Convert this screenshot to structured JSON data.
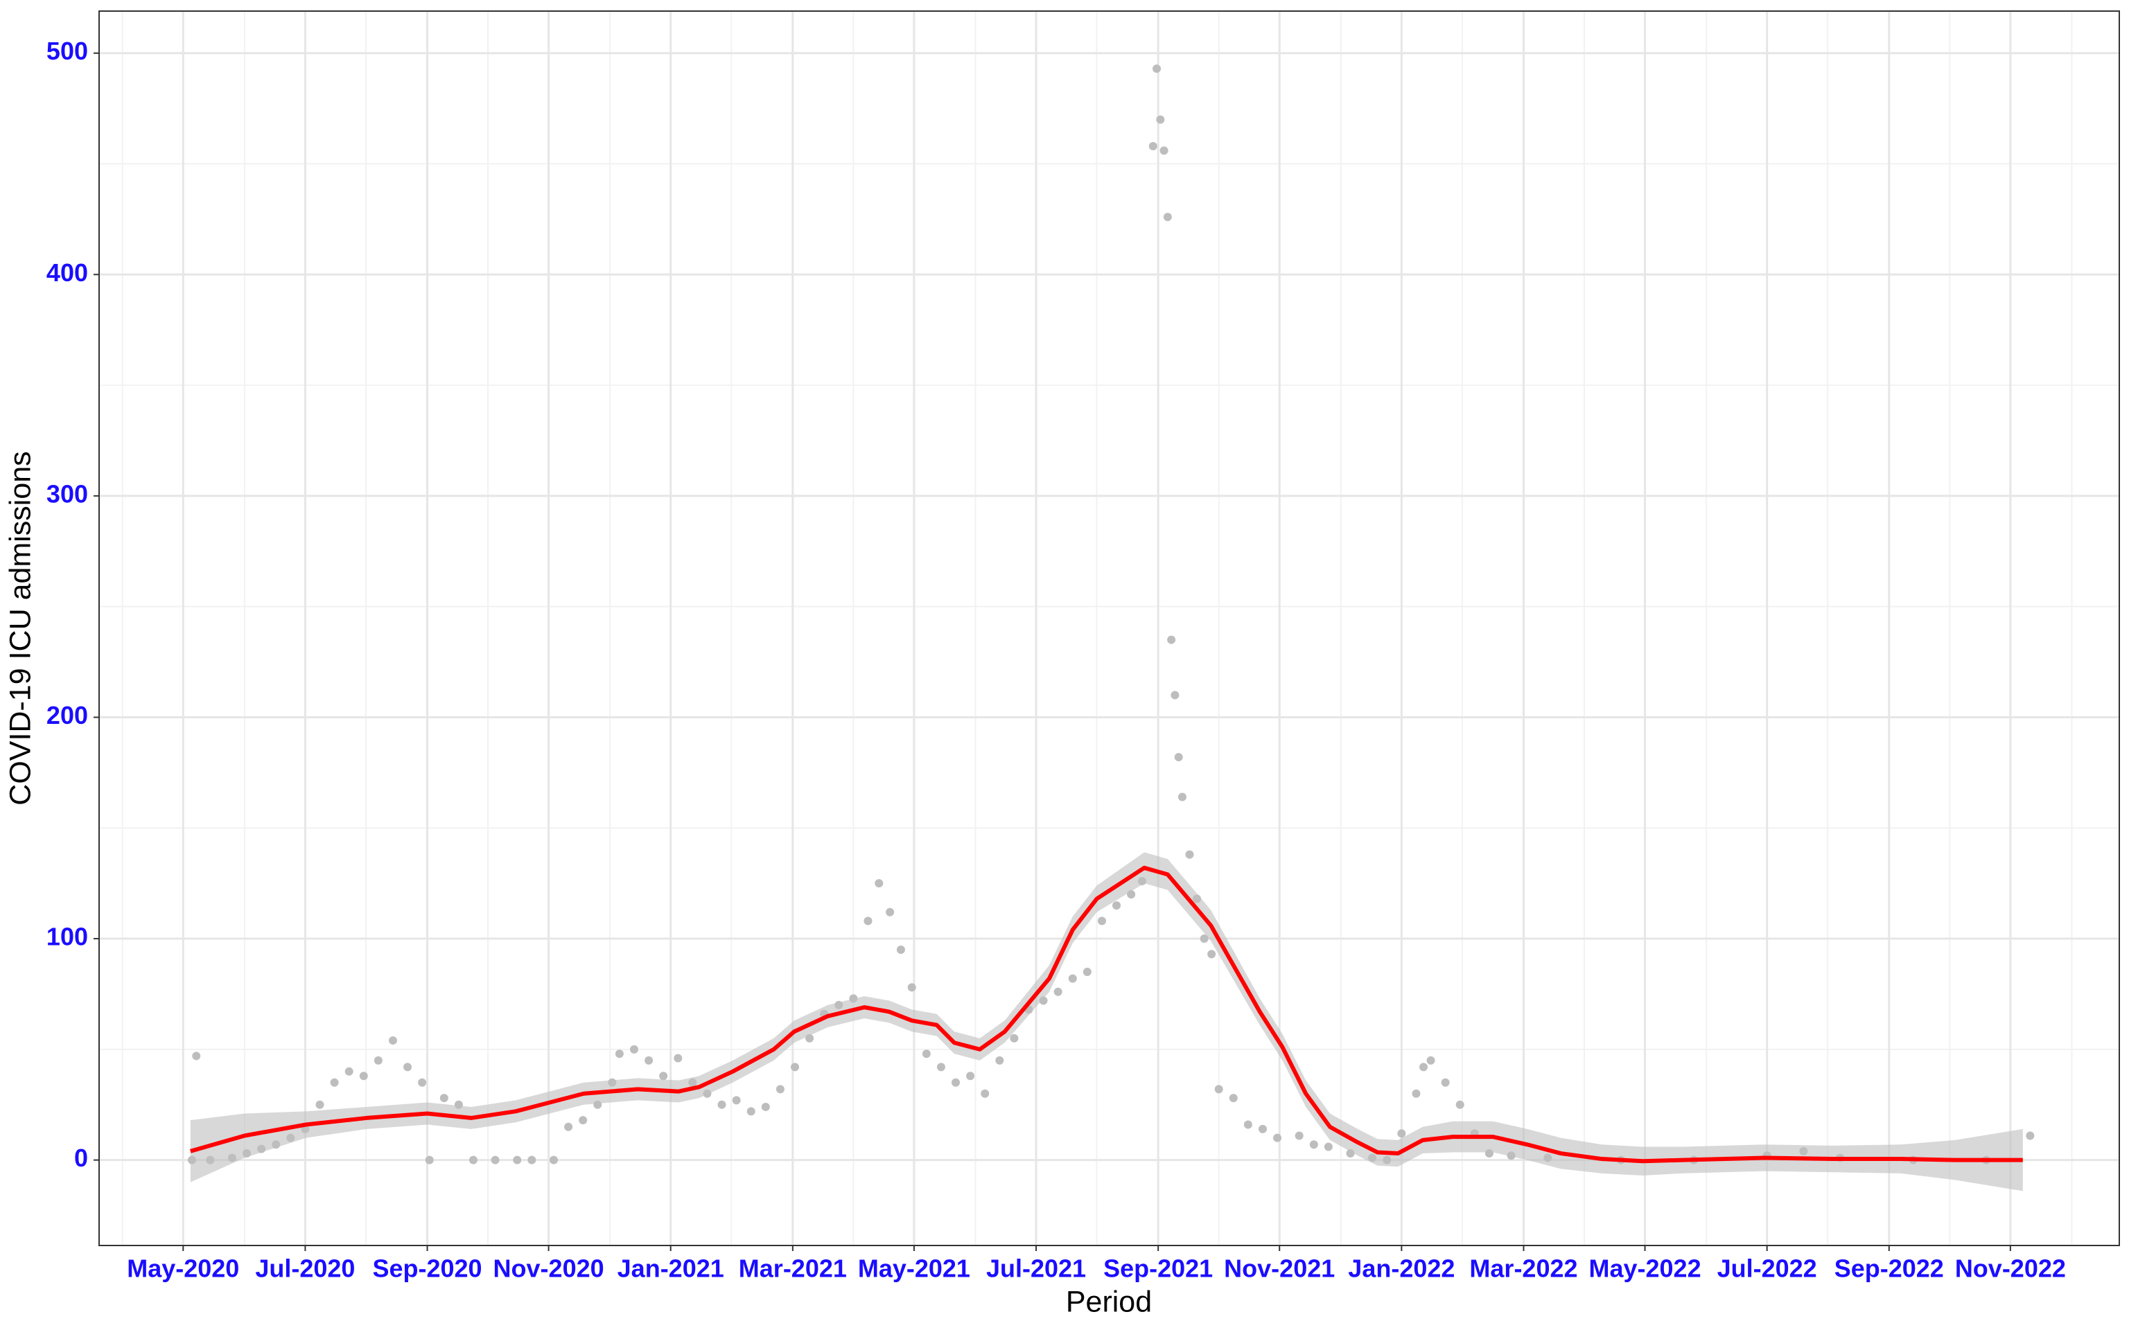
{
  "chart_data": {
    "type": "scatter",
    "x_label": "Period",
    "y_label": "COVID-19 ICU admissions",
    "xlim": [
      2020.218,
      2022.982
    ],
    "ylim": [
      -38.6,
      519
    ],
    "xticks": [
      {
        "value": 2020.333,
        "label": "May-2020"
      },
      {
        "value": 2020.5,
        "label": "Jul-2020"
      },
      {
        "value": 2020.667,
        "label": "Sep-2020"
      },
      {
        "value": 2020.833,
        "label": "Nov-2020"
      },
      {
        "value": 2021.0,
        "label": "Jan-2021"
      },
      {
        "value": 2021.167,
        "label": "Mar-2021"
      },
      {
        "value": 2021.333,
        "label": "May-2021"
      },
      {
        "value": 2021.5,
        "label": "Jul-2021"
      },
      {
        "value": 2021.667,
        "label": "Sep-2021"
      },
      {
        "value": 2021.833,
        "label": "Nov-2021"
      },
      {
        "value": 2022.0,
        "label": "Jan-2022"
      },
      {
        "value": 2022.167,
        "label": "Mar-2022"
      },
      {
        "value": 2022.333,
        "label": "May-2022"
      },
      {
        "value": 2022.5,
        "label": "Jul-2022"
      },
      {
        "value": 2022.667,
        "label": "Sep-2022"
      },
      {
        "value": 2022.833,
        "label": "Nov-2022"
      }
    ],
    "xminorticks": [
      2020.25,
      2020.417,
      2020.583,
      2020.75,
      2020.917,
      2021.083,
      2021.25,
      2021.417,
      2021.583,
      2021.75,
      2021.917,
      2022.083,
      2022.25,
      2022.417,
      2022.583,
      2022.75,
      2022.917
    ],
    "yticks": [
      0,
      100,
      200,
      300,
      400,
      500
    ],
    "yminorticks": [
      50,
      150,
      250,
      350,
      450
    ],
    "grid": true,
    "points": {
      "color": "#bdbdbd",
      "x": [
        2020.345,
        2020.351,
        2020.37,
        2020.4,
        2020.42,
        2020.44,
        2020.46,
        2020.48,
        2020.5,
        2020.52,
        2020.54,
        2020.56,
        2020.58,
        2020.6,
        2020.62,
        2020.64,
        2020.66,
        2020.67,
        2020.69,
        2020.71,
        2020.73,
        2020.76,
        2020.79,
        2020.81,
        2020.84,
        2020.86,
        2020.88,
        2020.9,
        2020.92,
        2020.93,
        2020.95,
        2020.97,
        2020.99,
        2021.01,
        2021.03,
        2021.05,
        2021.07,
        2021.09,
        2021.11,
        2021.13,
        2021.15,
        2021.17,
        2021.19,
        2021.21,
        2021.23,
        2021.25,
        2021.27,
        2021.285,
        2021.3,
        2021.315,
        2021.33,
        2021.35,
        2021.37,
        2021.39,
        2021.41,
        2021.43,
        2021.45,
        2021.47,
        2021.49,
        2021.51,
        2021.53,
        2021.55,
        2021.57,
        2021.59,
        2021.61,
        2021.63,
        2021.645,
        2021.66,
        2021.665,
        2021.67,
        2021.675,
        2021.68,
        2021.685,
        2021.69,
        2021.695,
        2021.7,
        2021.71,
        2021.72,
        2021.73,
        2021.74,
        2021.75,
        2021.77,
        2021.79,
        2021.81,
        2021.83,
        2021.86,
        2021.88,
        2021.9,
        2021.93,
        2021.96,
        2021.98,
        2022.0,
        2022.02,
        2022.03,
        2022.04,
        2022.06,
        2022.08,
        2022.1,
        2022.12,
        2022.15,
        2022.2,
        2022.3,
        2022.4,
        2022.5,
        2022.55,
        2022.6,
        2022.7,
        2022.8,
        2022.86
      ],
      "values": [
        0,
        47,
        0,
        1,
        3,
        5,
        7,
        10,
        14,
        25,
        35,
        40,
        38,
        45,
        54,
        42,
        35,
        0,
        28,
        25,
        0,
        0,
        0,
        0,
        0,
        15,
        18,
        25,
        35,
        48,
        50,
        45,
        38,
        46,
        35,
        30,
        25,
        27,
        22,
        24,
        32,
        42,
        55,
        66,
        70,
        73,
        108,
        125,
        112,
        95,
        78,
        48,
        42,
        35,
        38,
        30,
        45,
        55,
        68,
        72,
        76,
        82,
        85,
        108,
        115,
        120,
        126,
        458,
        493,
        470,
        456,
        426,
        235,
        210,
        182,
        164,
        138,
        118,
        100,
        93,
        32,
        28,
        16,
        14,
        10,
        11,
        7,
        6,
        3,
        1,
        0,
        12,
        30,
        42,
        45,
        35,
        25,
        12,
        3,
        2,
        1,
        0,
        0,
        2,
        4,
        1,
        0,
        0,
        11
      ]
    },
    "trend": {
      "color": "#ff0000",
      "band_color": "#bebebe",
      "x": [
        2020.343,
        2020.417,
        2020.501,
        2020.584,
        2020.667,
        2020.727,
        2020.788,
        2020.881,
        2020.955,
        2021.011,
        2021.039,
        2021.085,
        2021.141,
        2021.169,
        2021.215,
        2021.265,
        2021.299,
        2021.33,
        2021.364,
        2021.388,
        2021.423,
        2021.457,
        2021.518,
        2021.55,
        2021.583,
        2021.648,
        2021.68,
        2021.739,
        2021.806,
        2021.837,
        2021.869,
        2021.902,
        2021.94,
        2021.967,
        2021.995,
        2022.029,
        2022.07,
        2022.125,
        2022.172,
        2022.218,
        2022.274,
        2022.33,
        2022.385,
        2022.497,
        2022.59,
        2022.683,
        2022.757,
        2022.85
      ],
      "values": [
        4,
        11,
        16,
        19,
        21,
        19,
        22,
        30,
        32,
        31,
        33,
        40,
        50,
        58,
        65,
        69,
        67,
        63,
        61,
        53,
        50,
        58,
        82,
        104,
        118,
        132,
        129,
        106,
        67,
        51,
        30,
        15,
        8,
        3.5,
        3,
        9,
        10.5,
        10.5,
        7,
        3,
        0.5,
        -0.5,
        0,
        1,
        0.5,
        0.5,
        0,
        0
      ],
      "lower": [
        -10,
        1,
        10,
        14,
        16,
        14,
        17,
        25,
        27,
        26,
        28,
        35,
        45,
        53,
        60,
        64,
        62,
        58,
        56,
        48,
        45,
        53,
        76,
        98,
        112,
        125,
        122,
        99,
        61,
        45,
        24,
        9,
        2,
        -2.5,
        -3,
        3,
        3.5,
        3.5,
        0,
        -4,
        -6,
        -7,
        -6,
        -5,
        -5.5,
        -6,
        -9,
        -14
      ],
      "upper": [
        18,
        21,
        22,
        24,
        26,
        24,
        27,
        35,
        37,
        36,
        38,
        45,
        55,
        63,
        70,
        74,
        72,
        68,
        66,
        58,
        55,
        63,
        88,
        110,
        124,
        139,
        136,
        113,
        73,
        57,
        36,
        21,
        14,
        9.5,
        9,
        15,
        17.5,
        17.5,
        14,
        10,
        7,
        6,
        6,
        7,
        6.5,
        7,
        9,
        14
      ]
    }
  }
}
